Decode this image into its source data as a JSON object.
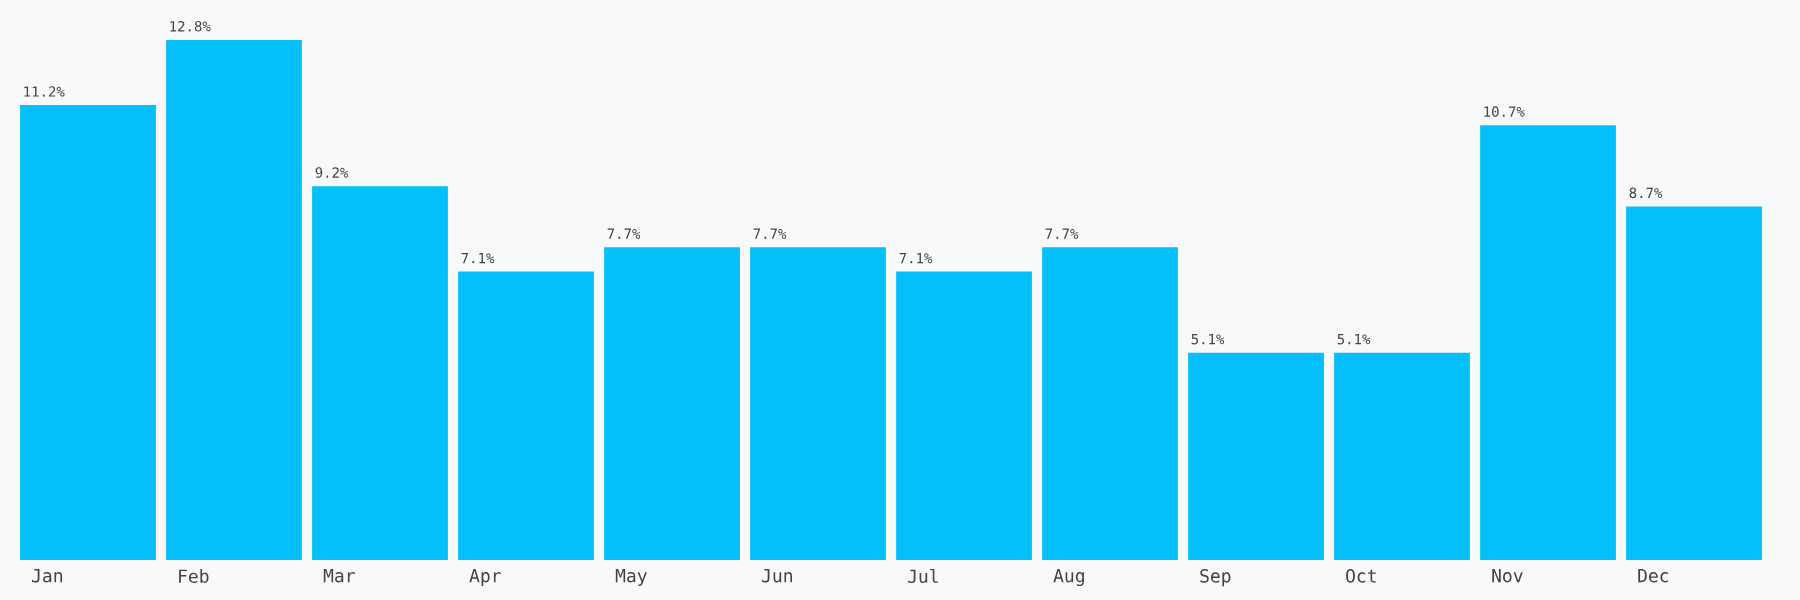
{
  "chart_data": {
    "type": "bar",
    "categories": [
      "Jan",
      "Feb",
      "Mar",
      "Apr",
      "May",
      "Jun",
      "Jul",
      "Aug",
      "Sep",
      "Oct",
      "Nov",
      "Dec"
    ],
    "values": [
      11.2,
      12.8,
      9.2,
      7.1,
      7.7,
      7.7,
      7.1,
      7.7,
      5.1,
      5.1,
      10.7,
      8.7
    ],
    "value_labels": [
      "11.2%",
      "12.8%",
      "9.2%",
      "7.1%",
      "7.7%",
      "7.7%",
      "7.1%",
      "7.7%",
      "5.1%",
      "5.1%",
      "10.7%",
      "8.7%"
    ],
    "color": "#05bffa"
  }
}
